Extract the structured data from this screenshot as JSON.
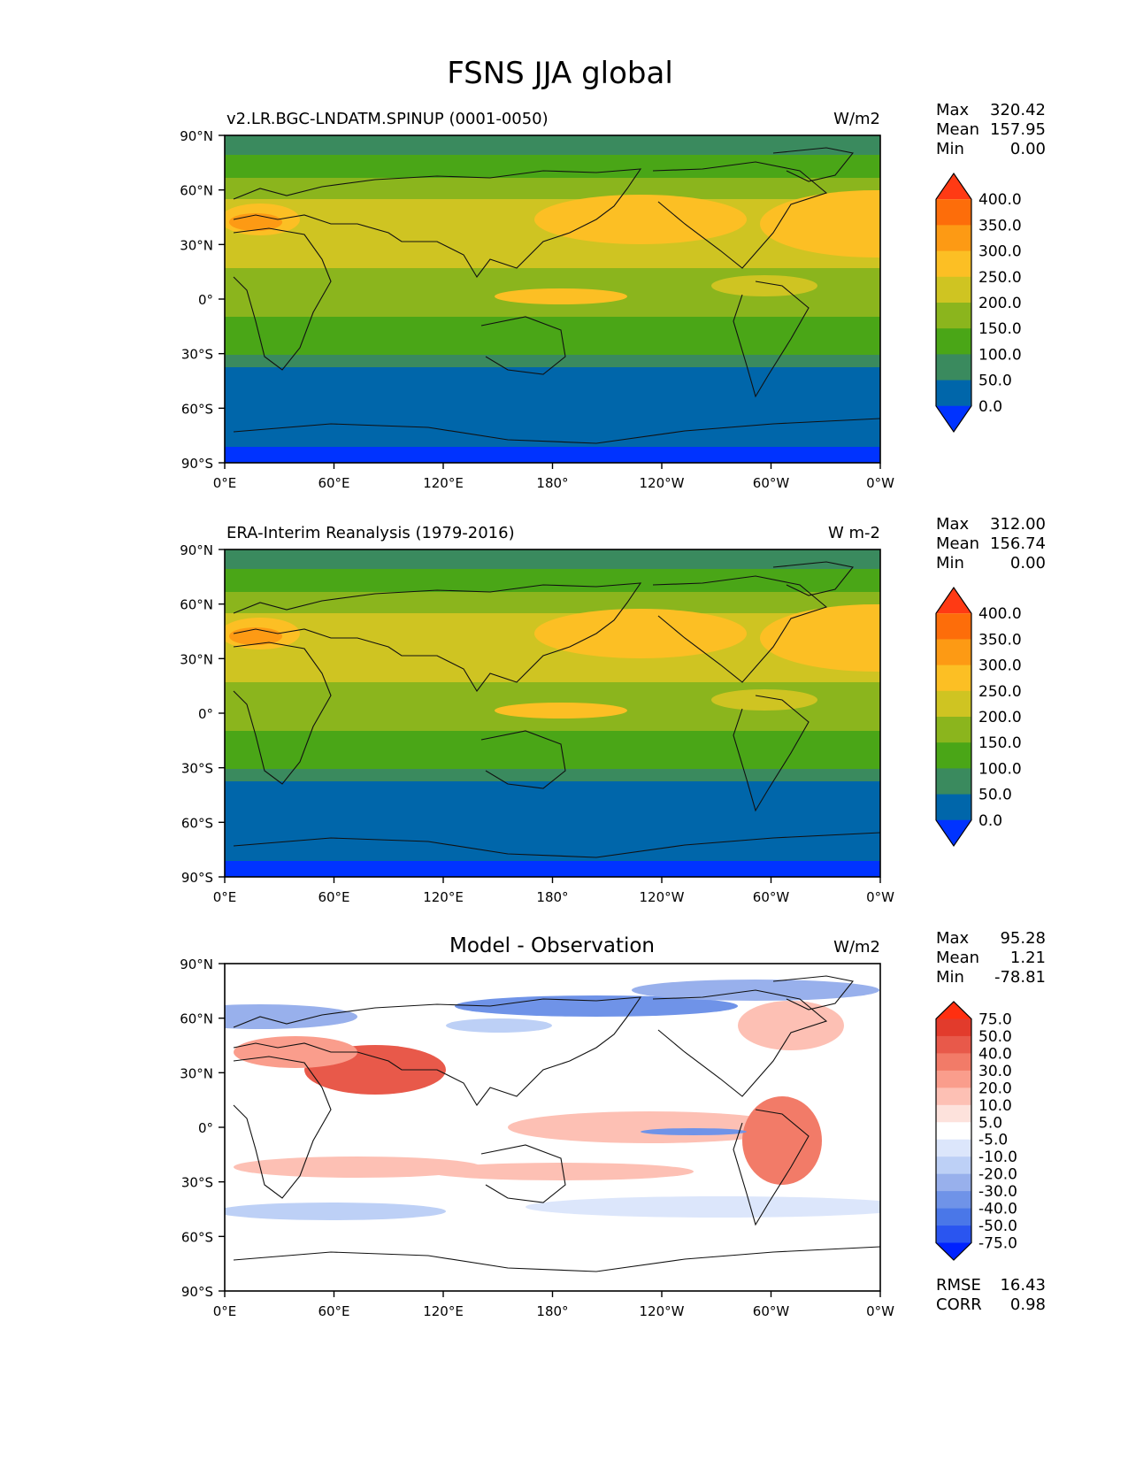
{
  "figure": {
    "title": "FSNS JJA global"
  },
  "axes": {
    "lat_ticks": [
      "90°N",
      "60°N",
      "30°N",
      "0°",
      "30°S",
      "60°S",
      "90°S"
    ],
    "lon_ticks": [
      "0°E",
      "60°E",
      "120°E",
      "180°",
      "120°W",
      "60°W",
      "0°W"
    ]
  },
  "colors": {
    "abs_levels": [
      "#0033ff",
      "#0066aa",
      "#3a8a5e",
      "#4aa617",
      "#8bb51d",
      "#cfc422",
      "#fcbf24",
      "#fd9a14",
      "#fd6d0a",
      "#ff3a14"
    ],
    "diff_levels": [
      "#0022ff",
      "#2a55f0",
      "#4a77e8",
      "#6f93e8",
      "#98b0ec",
      "#bdd0f6",
      "#dce6fb",
      "#ffffff",
      "#fde2dc",
      "#fdc0b4",
      "#fa9d8c",
      "#f27b68",
      "#e8594a",
      "#e23b2c",
      "#ff2f10"
    ],
    "land": "#ffffff"
  },
  "panels": [
    {
      "title_left": "v2.LR.BGC-LNDATM.SPINUP (0001-0050)",
      "title_center": "",
      "units": "W/m2",
      "stats": [
        {
          "label": "Max",
          "value": "320.42"
        },
        {
          "label": "Mean",
          "value": "157.95"
        },
        {
          "label": "Min",
          "value": "0.00"
        }
      ],
      "colorbar_labels": [
        "400.0",
        "350.0",
        "300.0",
        "250.0",
        "200.0",
        "150.0",
        "100.0",
        "50.0",
        "0.0"
      ]
    },
    {
      "title_left": "ERA-Interim Reanalysis (1979-2016)",
      "title_center": "",
      "units": "W m-2",
      "stats": [
        {
          "label": "Max",
          "value": "312.00"
        },
        {
          "label": "Mean",
          "value": "156.74"
        },
        {
          "label": "Min",
          "value": "0.00"
        }
      ],
      "colorbar_labels": [
        "400.0",
        "350.0",
        "300.0",
        "250.0",
        "200.0",
        "150.0",
        "100.0",
        "50.0",
        "0.0"
      ]
    },
    {
      "title_left": "",
      "title_center": "Model - Observation",
      "units": "W/m2",
      "stats": [
        {
          "label": "Max",
          "value": "95.28"
        },
        {
          "label": "Mean",
          "value": "1.21"
        },
        {
          "label": "Min",
          "value": "-78.81"
        }
      ],
      "colorbar_labels": [
        "75.0",
        "50.0",
        "40.0",
        "30.0",
        "20.0",
        "10.0",
        "5.0",
        "-5.0",
        "-10.0",
        "-20.0",
        "-30.0",
        "-40.0",
        "-50.0",
        "-75.0"
      ],
      "metrics": [
        {
          "label": "RMSE",
          "value": "16.43"
        },
        {
          "label": "CORR",
          "value": "0.98"
        }
      ]
    }
  ]
}
